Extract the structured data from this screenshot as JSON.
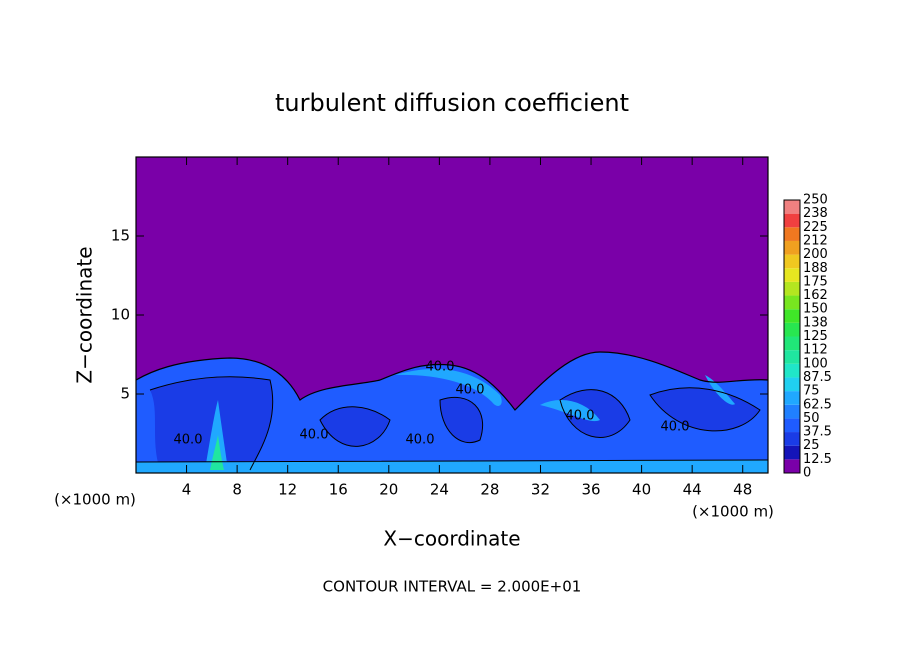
{
  "chart_data": {
    "type": "contour",
    "title": "turbulent diffusion coefficient",
    "xlabel": "X−coordinate",
    "ylabel": "Z−coordinate",
    "x_unit": "(×1000 m)",
    "y_unit": "(×1000 m)",
    "footnote": "CONTOUR INTERVAL = 2.000E+01",
    "xlim": [
      0,
      50
    ],
    "xticks": [
      4,
      8,
      12,
      16,
      20,
      24,
      28,
      32,
      36,
      40,
      44,
      48
    ],
    "ylim": [
      0,
      20
    ],
    "yticks": [
      5,
      10,
      15
    ],
    "levels": [
      0,
      12.5,
      25,
      37.5,
      50,
      62.5,
      75,
      87.5,
      100,
      {
        "value": 112.5,
        "label": "112"
      },
      125,
      {
        "value": 137.5,
        "label": "138"
      },
      150,
      {
        "value": 162.5,
        "label": "162"
      },
      175,
      {
        "value": 187.5,
        "label": "188"
      },
      200,
      {
        "value": 212.5,
        "label": "212"
      },
      225,
      {
        "value": 237.5,
        "label": "238"
      },
      250
    ],
    "colors": [
      "#7a00a8",
      "#1414b8",
      "#1a3ce6",
      "#1f5cff",
      "#2080ff",
      "#20a8ff",
      "#20d0f0",
      "#20e6c8",
      "#20e6a0",
      "#20e678",
      "#28e650",
      "#40e628",
      "#78e620",
      "#b4e620",
      "#e6e620",
      "#f0c820",
      "#f0a020",
      "#f07820",
      "#f04040",
      "#f08080"
    ],
    "contour_labels": [
      "40.0",
      "40.0",
      "40.0",
      "40.0",
      "40.0",
      "40.0",
      "40.0"
    ]
  }
}
